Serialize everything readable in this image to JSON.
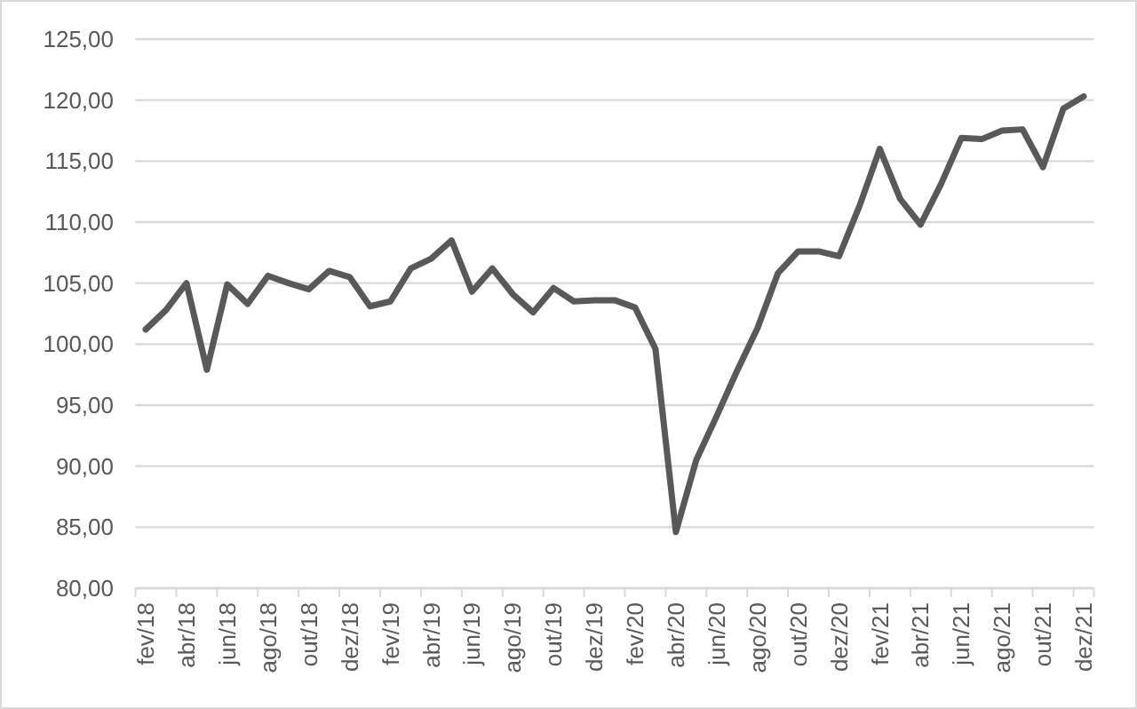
{
  "chart_data": {
    "type": "line",
    "categories": [
      "fev/18",
      null,
      "abr/18",
      null,
      "jun/18",
      null,
      "ago/18",
      null,
      "out/18",
      null,
      "dez/18",
      null,
      "fev/19",
      null,
      "abr/19",
      null,
      "jun/19",
      null,
      "ago/19",
      null,
      "out/19",
      null,
      "dez/19",
      null,
      "fev/20",
      null,
      "abr/20",
      null,
      "jun/20",
      null,
      "ago/20",
      null,
      "out/20",
      null,
      "dez/20",
      null,
      "fev/21",
      null,
      "abr/21",
      null,
      "jun/21",
      null,
      "ago/21",
      null,
      "out/21",
      null,
      "dez/21"
    ],
    "series": [
      {
        "color": "#595959",
        "values": [
          101.2,
          102.8,
          105.0,
          97.9,
          104.9,
          103.3,
          105.6,
          105.0,
          104.5,
          106.0,
          105.5,
          103.1,
          103.5,
          106.2,
          107.0,
          108.5,
          104.3,
          106.2,
          104.1,
          102.6,
          104.6,
          103.5,
          103.6,
          103.6,
          103.0,
          99.6,
          84.6,
          90.5,
          94.1,
          97.8,
          101.3,
          105.8,
          107.6,
          107.6,
          107.2,
          111.3,
          116.0,
          111.9,
          109.8,
          113.1,
          116.9,
          116.8,
          117.5,
          117.6,
          114.5,
          119.3,
          120.3
        ]
      }
    ],
    "ylim": [
      80,
      125
    ],
    "yticks": [
      {
        "value": 80,
        "label": "80,00"
      },
      {
        "value": 85,
        "label": "85,00"
      },
      {
        "value": 90,
        "label": "90,00"
      },
      {
        "value": 95,
        "label": "95,00"
      },
      {
        "value": 100,
        "label": "100,00"
      },
      {
        "value": 105,
        "label": "105,00"
      },
      {
        "value": 110,
        "label": "110,00"
      },
      {
        "value": 115,
        "label": "115,00"
      },
      {
        "value": 120,
        "label": "120,00"
      },
      {
        "value": 125,
        "label": "125,00"
      }
    ],
    "grid": "y",
    "marker": "none",
    "line_style": "solid"
  }
}
